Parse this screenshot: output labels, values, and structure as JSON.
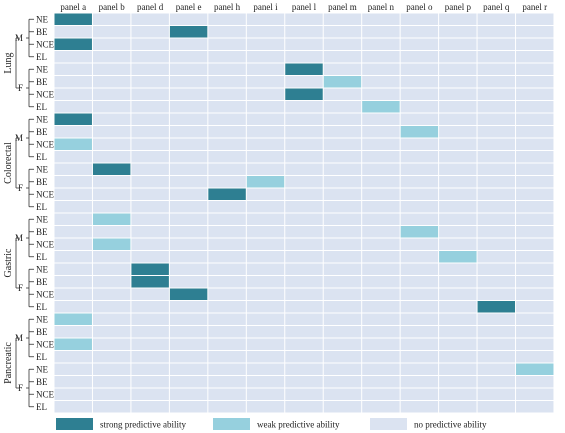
{
  "chart_data": {
    "type": "heatmap",
    "columns": [
      "panel a",
      "panel b",
      "panel d",
      "panel e",
      "panel h",
      "panel i",
      "panel l",
      "panel m",
      "panel n",
      "panel o",
      "panel p",
      "panel q",
      "panel r"
    ],
    "row_labels": [
      "NE",
      "BE",
      "NCE",
      "EL"
    ],
    "sex_labels": [
      "M",
      "F"
    ],
    "groups": [
      {
        "name": "Lung",
        "rows": [
          {
            "sex": "M",
            "label": "NE",
            "values": [
              "s",
              "",
              "",
              "",
              "",
              "",
              "",
              "",
              "",
              "",
              "",
              "",
              ""
            ]
          },
          {
            "sex": "M",
            "label": "BE",
            "values": [
              "",
              "",
              "",
              "s",
              "",
              "",
              "",
              "",
              "",
              "",
              "",
              "",
              ""
            ]
          },
          {
            "sex": "M",
            "label": "NCE",
            "values": [
              "s",
              "",
              "",
              "",
              "",
              "",
              "",
              "",
              "",
              "",
              "",
              "",
              ""
            ]
          },
          {
            "sex": "M",
            "label": "EL",
            "values": [
              "",
              "",
              "",
              "",
              "",
              "",
              "",
              "",
              "",
              "",
              "",
              "",
              ""
            ]
          },
          {
            "sex": "F",
            "label": "NE",
            "values": [
              "",
              "",
              "",
              "",
              "",
              "",
              "s",
              "",
              "",
              "",
              "",
              "",
              ""
            ]
          },
          {
            "sex": "F",
            "label": "BE",
            "values": [
              "",
              "",
              "",
              "",
              "",
              "",
              "",
              "w",
              "",
              "",
              "",
              "",
              ""
            ]
          },
          {
            "sex": "F",
            "label": "NCE",
            "values": [
              "",
              "",
              "",
              "",
              "",
              "",
              "s",
              "",
              "",
              "",
              "",
              "",
              ""
            ]
          },
          {
            "sex": "F",
            "label": "EL",
            "values": [
              "",
              "",
              "",
              "",
              "",
              "",
              "",
              "",
              "w",
              "",
              "",
              "",
              ""
            ]
          }
        ]
      },
      {
        "name": "Colorectal",
        "rows": [
          {
            "sex": "M",
            "label": "NE",
            "values": [
              "s",
              "",
              "",
              "",
              "",
              "",
              "",
              "",
              "",
              "",
              "",
              "",
              ""
            ]
          },
          {
            "sex": "M",
            "label": "BE",
            "values": [
              "",
              "",
              "",
              "",
              "",
              "",
              "",
              "",
              "",
              "w",
              "",
              "",
              ""
            ]
          },
          {
            "sex": "M",
            "label": "NCE",
            "values": [
              "w",
              "",
              "",
              "",
              "",
              "",
              "",
              "",
              "",
              "",
              "",
              "",
              ""
            ]
          },
          {
            "sex": "M",
            "label": "EL",
            "values": [
              "",
              "",
              "",
              "",
              "",
              "",
              "",
              "",
              "",
              "",
              "",
              "",
              ""
            ]
          },
          {
            "sex": "F",
            "label": "NE",
            "values": [
              "",
              "s",
              "",
              "",
              "",
              "",
              "",
              "",
              "",
              "",
              "",
              "",
              ""
            ]
          },
          {
            "sex": "F",
            "label": "BE",
            "values": [
              "",
              "",
              "",
              "",
              "",
              "w",
              "",
              "",
              "",
              "",
              "",
              "",
              ""
            ]
          },
          {
            "sex": "F",
            "label": "NCE",
            "values": [
              "",
              "",
              "",
              "",
              "s",
              "",
              "",
              "",
              "",
              "",
              "",
              "",
              ""
            ]
          },
          {
            "sex": "F",
            "label": "EL",
            "values": [
              "",
              "",
              "",
              "",
              "",
              "",
              "",
              "",
              "",
              "",
              "",
              "",
              ""
            ]
          }
        ]
      },
      {
        "name": "Gastric",
        "rows": [
          {
            "sex": "M",
            "label": "NE",
            "values": [
              "",
              "w",
              "",
              "",
              "",
              "",
              "",
              "",
              "",
              "",
              "",
              "",
              ""
            ]
          },
          {
            "sex": "M",
            "label": "BE",
            "values": [
              "",
              "",
              "",
              "",
              "",
              "",
              "",
              "",
              "",
              "w",
              "",
              "",
              ""
            ]
          },
          {
            "sex": "M",
            "label": "NCE",
            "values": [
              "",
              "w",
              "",
              "",
              "",
              "",
              "",
              "",
              "",
              "",
              "",
              "",
              ""
            ]
          },
          {
            "sex": "M",
            "label": "EL",
            "values": [
              "",
              "",
              "",
              "",
              "",
              "",
              "",
              "",
              "",
              "",
              "w",
              "",
              ""
            ]
          },
          {
            "sex": "F",
            "label": "NE",
            "values": [
              "",
              "",
              "s",
              "",
              "",
              "",
              "",
              "",
              "",
              "",
              "",
              "",
              ""
            ]
          },
          {
            "sex": "F",
            "label": "BE",
            "values": [
              "",
              "",
              "s",
              "",
              "",
              "",
              "",
              "",
              "",
              "",
              "",
              "",
              ""
            ]
          },
          {
            "sex": "F",
            "label": "NCE",
            "values": [
              "",
              "",
              "",
              "s",
              "",
              "",
              "",
              "",
              "",
              "",
              "",
              "",
              ""
            ]
          },
          {
            "sex": "F",
            "label": "EL",
            "values": [
              "",
              "",
              "",
              "",
              "",
              "",
              "",
              "",
              "",
              "",
              "",
              "s",
              ""
            ]
          }
        ]
      },
      {
        "name": "Pancreatic",
        "rows": [
          {
            "sex": "M",
            "label": "NE",
            "values": [
              "w",
              "",
              "",
              "",
              "",
              "",
              "",
              "",
              "",
              "",
              "",
              "",
              ""
            ]
          },
          {
            "sex": "M",
            "label": "BE",
            "values": [
              "",
              "",
              "",
              "",
              "",
              "",
              "",
              "",
              "",
              "",
              "",
              "",
              ""
            ]
          },
          {
            "sex": "M",
            "label": "NCE",
            "values": [
              "w",
              "",
              "",
              "",
              "",
              "",
              "",
              "",
              "",
              "",
              "",
              "",
              ""
            ]
          },
          {
            "sex": "M",
            "label": "EL",
            "values": [
              "",
              "",
              "",
              "",
              "",
              "",
              "",
              "",
              "",
              "",
              "",
              "",
              ""
            ]
          },
          {
            "sex": "F",
            "label": "NE",
            "values": [
              "",
              "",
              "",
              "",
              "",
              "",
              "",
              "",
              "",
              "",
              "",
              "",
              "w"
            ]
          },
          {
            "sex": "F",
            "label": "BE",
            "values": [
              "",
              "",
              "",
              "",
              "",
              "",
              "",
              "",
              "",
              "",
              "",
              "",
              ""
            ]
          },
          {
            "sex": "F",
            "label": "NCE",
            "values": [
              "",
              "",
              "",
              "",
              "",
              "",
              "",
              "",
              "",
              "",
              "",
              "",
              ""
            ]
          },
          {
            "sex": "F",
            "label": "EL",
            "values": [
              "",
              "",
              "",
              "",
              "",
              "",
              "",
              "",
              "",
              "",
              "",
              "",
              ""
            ]
          }
        ]
      }
    ],
    "legend": [
      {
        "key": "s",
        "label": "strong predictive ability",
        "color": "#2e7f92"
      },
      {
        "key": "w",
        "label": "weak predictive ability",
        "color": "#96d0de"
      },
      {
        "key": "",
        "label": "no predictive ability",
        "color": "#dbe3f1"
      }
    ],
    "legend_position": "bottom",
    "title": "",
    "xlabel": "",
    "ylabel": ""
  }
}
